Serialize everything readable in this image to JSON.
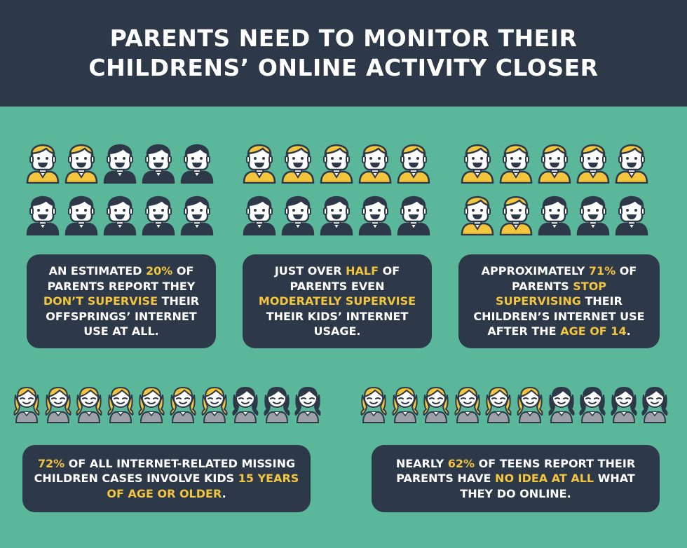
{
  "header": {
    "title_line1": "PARENTS NEED TO MONITOR THEIR",
    "title_line2": "CHILDRENS’ ONLINE ACTIVITY CLOSER"
  },
  "colors": {
    "background": "#5bb79a",
    "dark_panel": "#2d3849",
    "highlight": "#f2c53d",
    "white": "#ffffff"
  },
  "panels": [
    {
      "icons": [
        "yellow",
        "yellow",
        "dark",
        "dark",
        "dark",
        "dark",
        "dark",
        "dark",
        "dark",
        "dark"
      ],
      "segments": [
        {
          "t": "AN ESTIMATED ",
          "h": false
        },
        {
          "t": "20%",
          "h": true
        },
        {
          "t": " OF PARENTS REPORT THEY ",
          "h": false
        },
        {
          "t": "DON’T SUPERVISE",
          "h": true
        },
        {
          "t": " THEIR OFFSPRINGS’ INTERNET USE AT ALL.",
          "h": false
        }
      ]
    },
    {
      "icons": [
        "yellow",
        "yellow",
        "yellow",
        "yellow",
        "yellow",
        "dark",
        "dark",
        "dark",
        "dark",
        "dark"
      ],
      "segments": [
        {
          "t": "JUST OVER ",
          "h": false
        },
        {
          "t": "HALF",
          "h": true
        },
        {
          "t": " OF PARENTS EVEN ",
          "h": false
        },
        {
          "t": "MODERATELY SUPERVISE",
          "h": true
        },
        {
          "t": " THEIR KIDS’ INTERNET USAGE.",
          "h": false
        }
      ]
    },
    {
      "icons": [
        "yellow",
        "yellow",
        "yellow",
        "yellow",
        "yellow",
        "yellow",
        "yellow",
        "dark",
        "dark",
        "dark"
      ],
      "segments": [
        {
          "t": "APPROXIMATELY ",
          "h": false
        },
        {
          "t": "71%",
          "h": true
        },
        {
          "t": " OF PARENTS ",
          "h": false
        },
        {
          "t": "STOP SUPERVISING",
          "h": true
        },
        {
          "t": " THEIR CHILDREN’S INTERNET USE AFTER THE ",
          "h": false
        },
        {
          "t": "AGE OF 14",
          "h": true
        },
        {
          "t": ".",
          "h": false
        }
      ]
    },
    {
      "icons": [
        "yellow",
        "yellow",
        "yellow",
        "yellow",
        "yellow",
        "yellow",
        "yellow",
        "dark",
        "dark",
        "dark"
      ],
      "segments": [
        {
          "t": "72%",
          "h": true
        },
        {
          "t": " OF ALL INTERNET-RELATED MISSING CHILDREN CASES INVOLVE KIDS ",
          "h": false
        },
        {
          "t": "15 YEARS OF AGE OR OLDER",
          "h": true
        },
        {
          "t": ".",
          "h": false
        }
      ]
    },
    {
      "icons": [
        "yellow",
        "yellow",
        "yellow",
        "yellow",
        "yellow",
        "yellow",
        "dark",
        "dark",
        "dark",
        "dark"
      ],
      "segments": [
        {
          "t": "NEARLY ",
          "h": false
        },
        {
          "t": "62%",
          "h": true
        },
        {
          "t": " OF TEENS REPORT THEIR PARENTS HAVE ",
          "h": false
        },
        {
          "t": "NO IDEA AT ALL",
          "h": true
        },
        {
          "t": " WHAT THEY DO ONLINE.",
          "h": false
        }
      ]
    }
  ]
}
